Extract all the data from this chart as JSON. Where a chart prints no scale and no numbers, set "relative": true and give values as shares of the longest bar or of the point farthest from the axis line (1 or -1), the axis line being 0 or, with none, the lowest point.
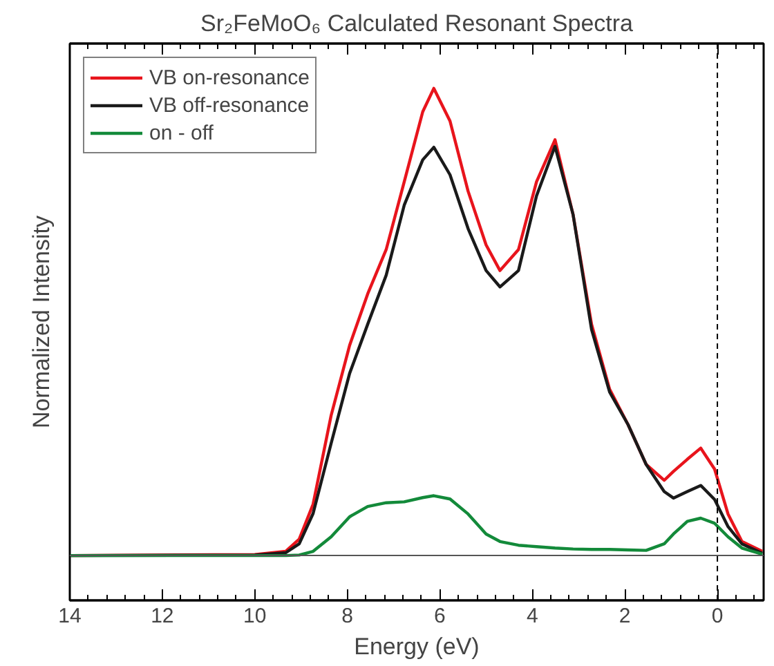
{
  "chart_data": {
    "type": "line",
    "title": "Sr₂FeMoO₆ Calculated Resonant Spectra",
    "xlabel": "Energy (eV)",
    "ylabel": "Normalized Intensity",
    "relative": true,
    "xlim": [
      14,
      -1
    ],
    "xticks": [
      14,
      12,
      10,
      8,
      6,
      4,
      2,
      0
    ],
    "x": [
      14,
      10,
      9.33,
      9.04,
      8.74,
      8.35,
      7.95,
      7.56,
      7.16,
      6.77,
      6.37,
      6.13,
      5.78,
      5.39,
      5.0,
      4.7,
      4.3,
      3.91,
      3.51,
      3.12,
      2.72,
      2.33,
      1.93,
      1.54,
      1.15,
      0.95,
      0.65,
      0.36,
      0.06,
      -0.23,
      -0.53,
      -0.97
    ],
    "series": [
      {
        "name": "VB on-resonance",
        "color": "#e8141c",
        "values": [
          0,
          0.002,
          0.009,
          0.035,
          0.11,
          0.3,
          0.45,
          0.56,
          0.655,
          0.8,
          0.95,
          1.0,
          0.93,
          0.78,
          0.665,
          0.61,
          0.655,
          0.8,
          0.89,
          0.73,
          0.495,
          0.356,
          0.28,
          0.195,
          0.161,
          0.18,
          0.206,
          0.23,
          0.185,
          0.089,
          0.03,
          0.009
        ]
      },
      {
        "name": "VB off-resonance",
        "color": "#1a1a1a",
        "values": [
          0,
          0.001,
          0.006,
          0.025,
          0.09,
          0.24,
          0.39,
          0.495,
          0.6,
          0.75,
          0.847,
          0.874,
          0.815,
          0.7,
          0.61,
          0.575,
          0.61,
          0.77,
          0.876,
          0.73,
          0.484,
          0.35,
          0.28,
          0.195,
          0.137,
          0.123,
          0.137,
          0.15,
          0.12,
          0.062,
          0.025,
          0.005
        ]
      },
      {
        "name": "on - off",
        "color": "#138a3a",
        "values": [
          0,
          0,
          0,
          0.001,
          0.009,
          0.04,
          0.083,
          0.105,
          0.113,
          0.115,
          0.124,
          0.128,
          0.121,
          0.089,
          0.046,
          0.03,
          0.022,
          0.019,
          0.016,
          0.014,
          0.013,
          0.013,
          0.012,
          0.011,
          0.025,
          0.046,
          0.073,
          0.08,
          0.069,
          0.04,
          0.016,
          0.003
        ]
      }
    ],
    "ref_lines": [
      {
        "axis": "y",
        "value": 0,
        "color": "#555555",
        "line_style": "solid"
      },
      {
        "axis": "x",
        "value": 0,
        "color": "#000000",
        "line_style": "dashed"
      }
    ],
    "legend": "top left",
    "grid": false,
    "marker": "none",
    "line_style": "solid"
  }
}
